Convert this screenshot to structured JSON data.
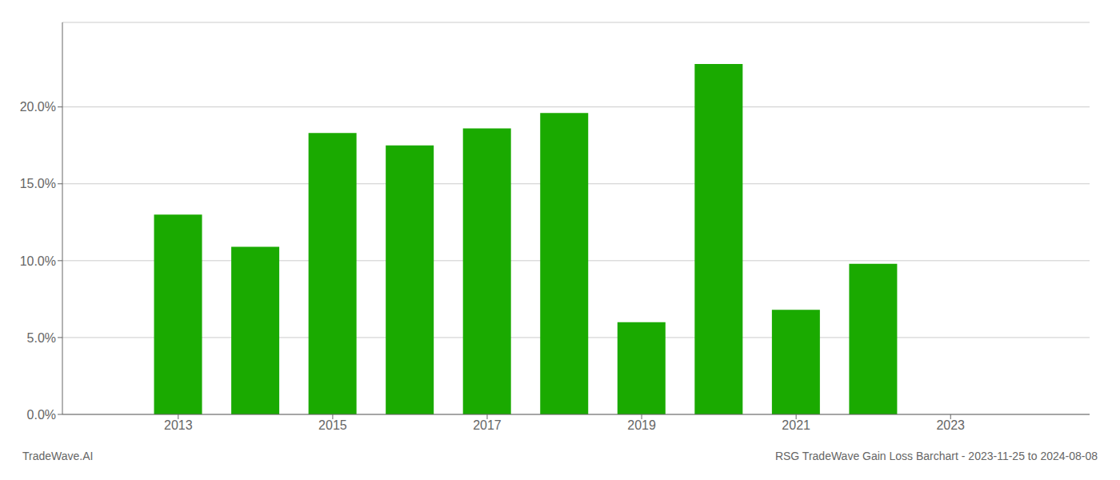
{
  "chart_data": {
    "type": "bar",
    "x": [
      2013,
      2014,
      2015,
      2016,
      2017,
      2018,
      2019,
      2020,
      2021,
      2022,
      2023
    ],
    "values": [
      0.13,
      0.109,
      0.183,
      0.175,
      0.186,
      0.196,
      0.06,
      0.228,
      0.068,
      0.098,
      0.0
    ],
    "color": "#1aaa00",
    "xlim": [
      2011.5,
      2024.8
    ],
    "xticks": [
      2013,
      2015,
      2017,
      2019,
      2021,
      2023
    ],
    "ylim": [
      0,
      0.255
    ],
    "yticks": [
      {
        "value": 0.0,
        "label": "0.0%"
      },
      {
        "value": 0.05,
        "label": "5.0%"
      },
      {
        "value": 0.1,
        "label": "10.0%"
      },
      {
        "value": 0.15,
        "label": "15.0%"
      },
      {
        "value": 0.2,
        "label": "20.0%"
      }
    ],
    "grid": true,
    "annotations": [
      "TradeWave.AI",
      "RSG TradeWave Gain Loss Barchart - 2023-11-25 to 2024-08-08"
    ]
  }
}
